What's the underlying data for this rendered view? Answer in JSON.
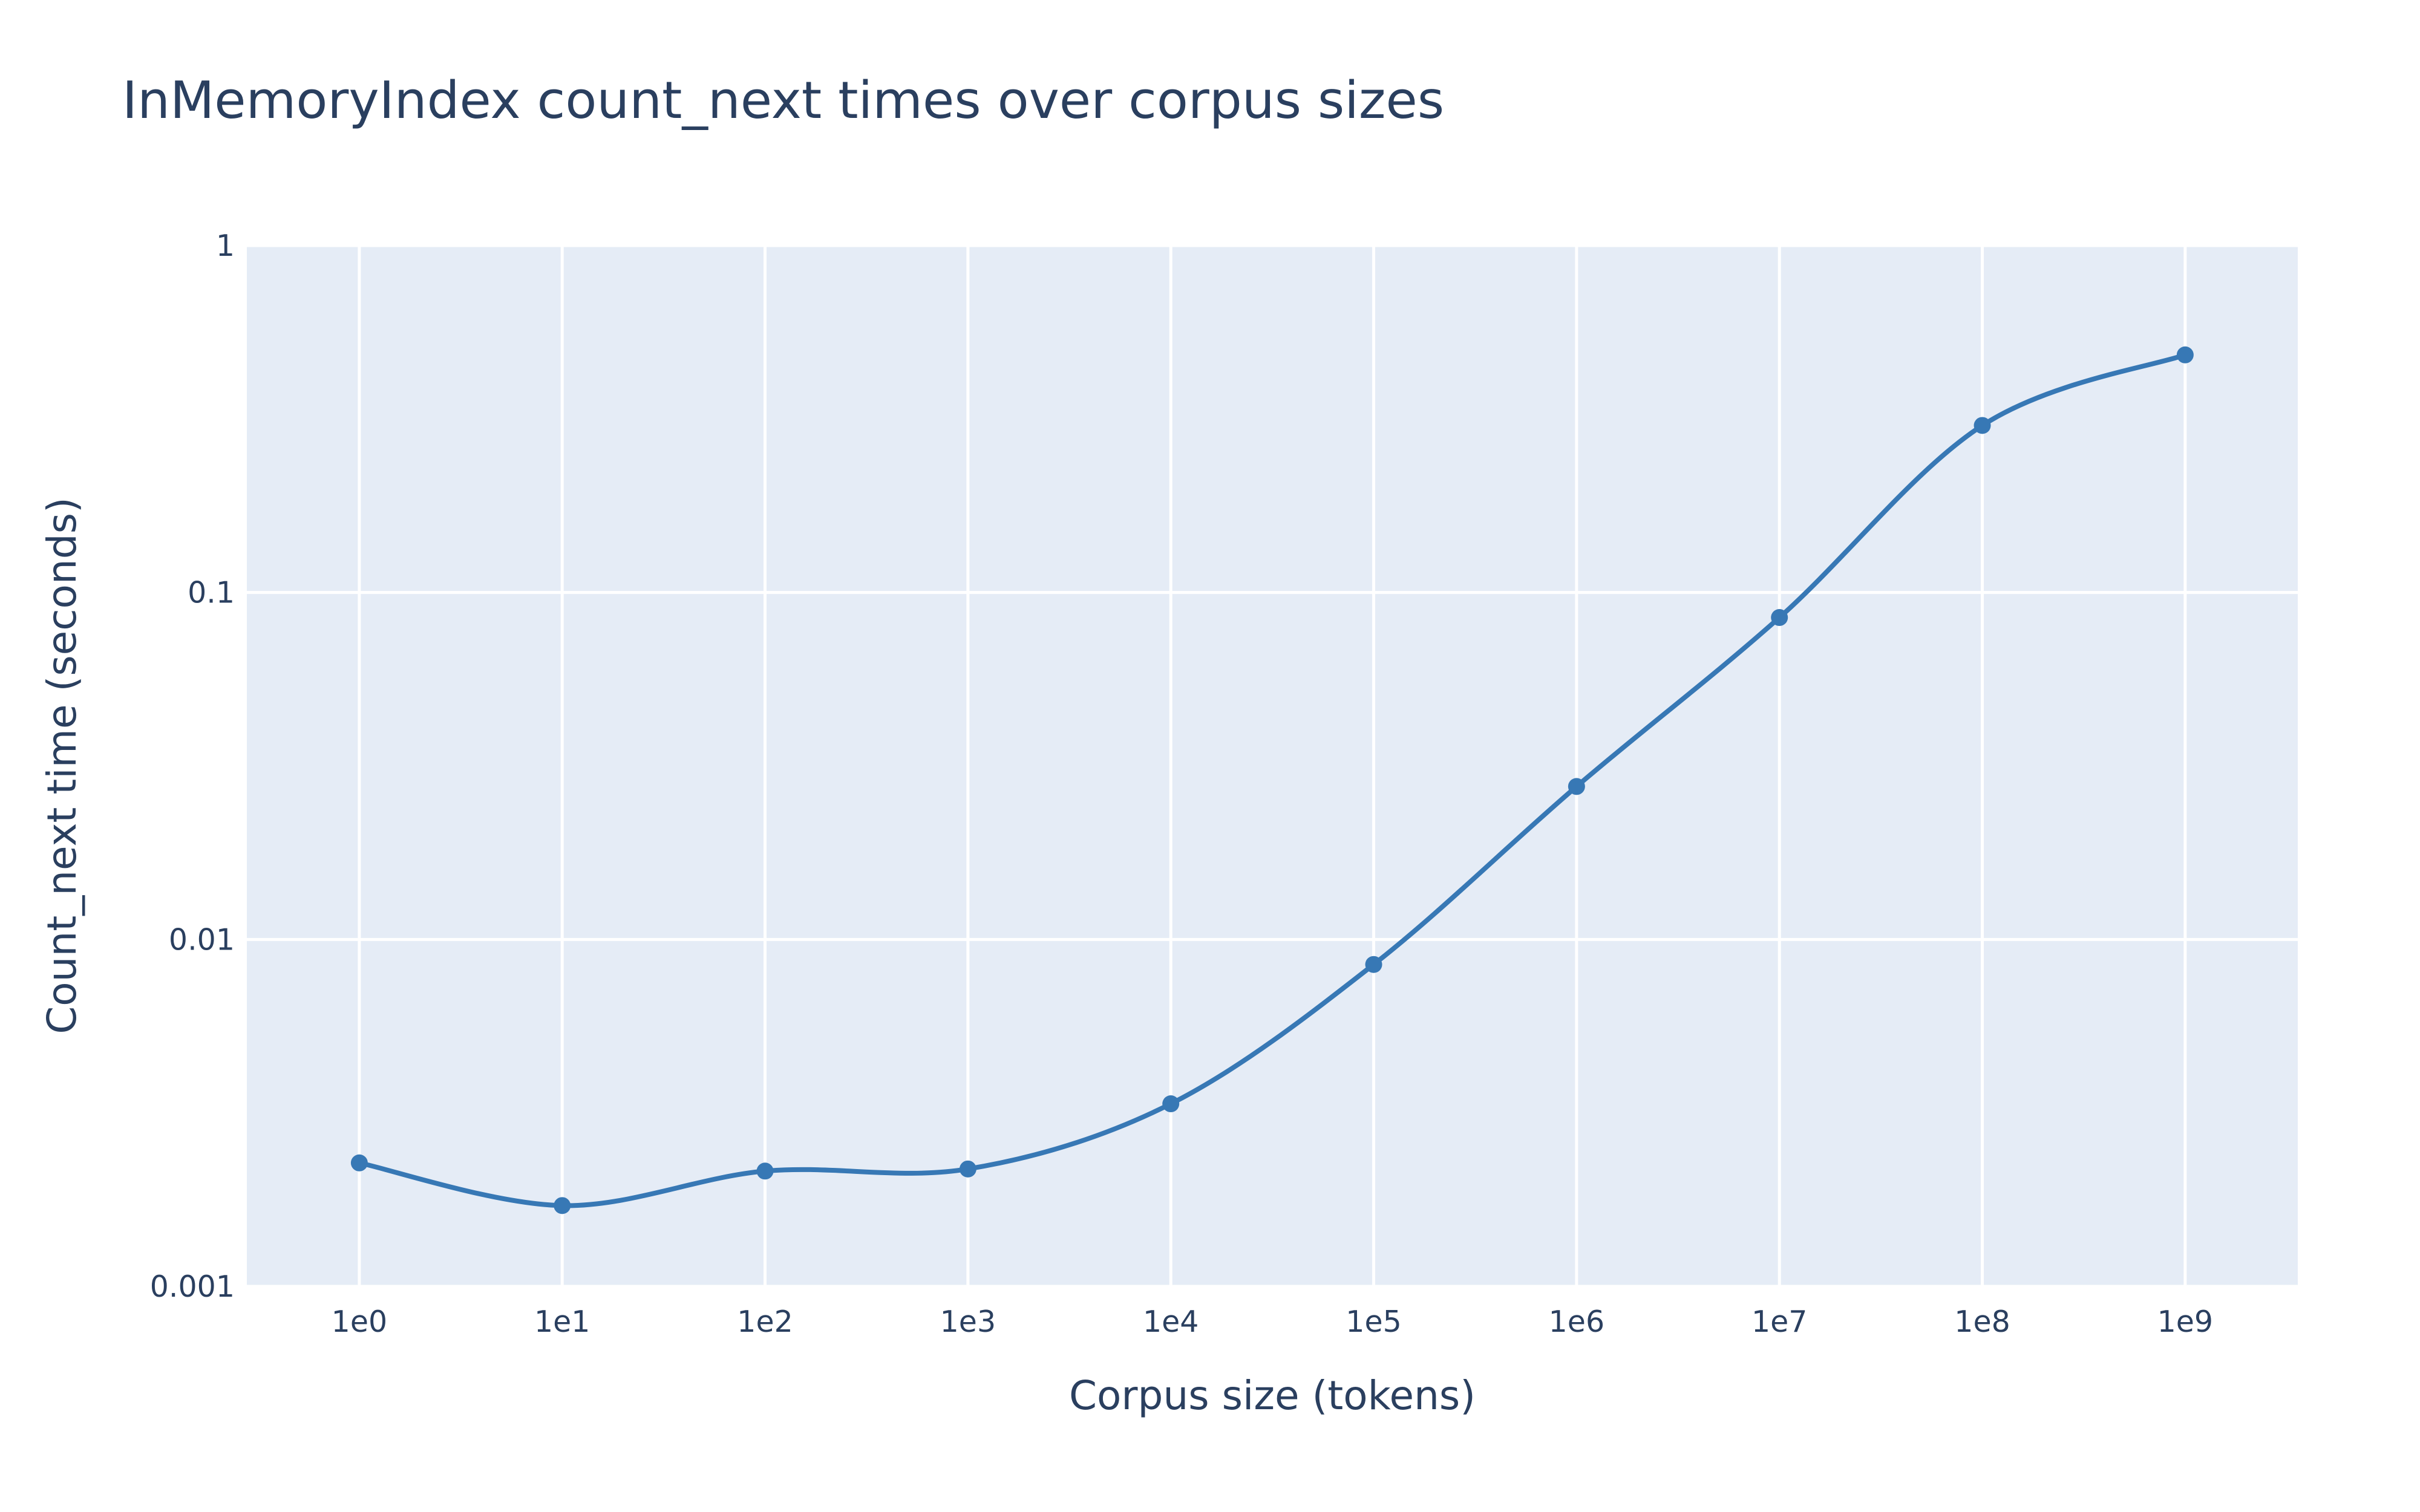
{
  "chart_data": {
    "type": "line",
    "title": "InMemoryIndex count_next times over corpus sizes",
    "x_label": "Corpus size (tokens)",
    "y_label": "Count_next time (seconds)",
    "x": [
      1,
      10,
      100,
      1000,
      10000,
      100000,
      1000000,
      10000000,
      100000000,
      1000000000
    ],
    "series": [
      {
        "color": "#3778b5",
        "values": [
          0.00227,
          0.00171,
          0.00215,
          0.00218,
          0.00336,
          0.00847,
          0.0276,
          0.0847,
          0.303,
          0.484
        ]
      }
    ],
    "xlim": [
      0.279,
      3590000000
    ],
    "xticks": [
      {
        "value": 1,
        "label": "1e0"
      },
      {
        "value": 10,
        "label": "1e1"
      },
      {
        "value": 100,
        "label": "1e2"
      },
      {
        "value": 1000,
        "label": "1e3"
      },
      {
        "value": 10000,
        "label": "1e4"
      },
      {
        "value": 100000,
        "label": "1e5"
      },
      {
        "value": 1000000,
        "label": "1e6"
      },
      {
        "value": 10000000,
        "label": "1e7"
      },
      {
        "value": 100000000,
        "label": "1e8"
      },
      {
        "value": 1000000000,
        "label": "1e9"
      }
    ],
    "ylim": [
      0.001,
      1
    ],
    "yticks": [
      0.001,
      0.01,
      0.1,
      1
    ],
    "log_x": true,
    "log_y": true,
    "grid": true,
    "smooth": true,
    "plot_background": "#e5ecf6"
  }
}
